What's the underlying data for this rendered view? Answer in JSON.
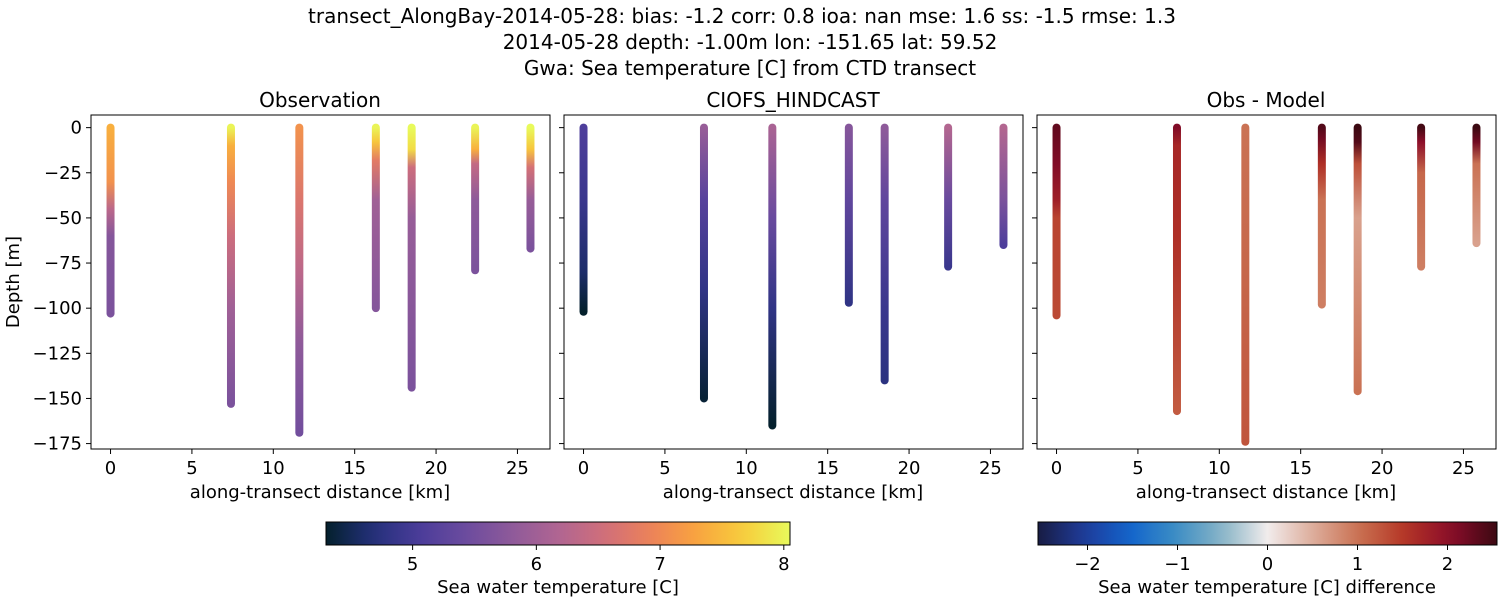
{
  "title_lines": [
    "transect_AlongBay-2014-05-28: bias: -1.2  corr: 0.8  ioa: nan  mse: 1.6  ss: -1.5  rmse: 1.3",
    "2014-05-28 depth: -1.00m lon: -151.65 lat: 59.52",
    "Gwa: Sea temperature [C] from CTD transect"
  ],
  "chart_data": [
    {
      "type": "scatter",
      "title": "Observation",
      "xlabel": "along-transect distance [km]",
      "ylabel": "Depth [m]",
      "xlim": [
        -1.2,
        27
      ],
      "ylim": [
        -178,
        7
      ],
      "xticks": [
        0,
        5,
        10,
        15,
        20,
        25
      ],
      "yticks": [
        0,
        -25,
        -50,
        -75,
        -100,
        -125,
        -150,
        -175
      ],
      "colormap": "thermal",
      "clim": [
        4.3,
        8.05
      ],
      "casts": [
        {
          "x": 0.0,
          "max_depth": -103,
          "stops": [
            [
              0,
              7.4
            ],
            [
              -30,
              7.1
            ],
            [
              -45,
              6.3
            ],
            [
              -60,
              5.7
            ],
            [
              -103,
              5.6
            ]
          ]
        },
        {
          "x": 7.4,
          "max_depth": -153,
          "stops": [
            [
              0,
              8.0
            ],
            [
              -10,
              7.4
            ],
            [
              -30,
              7.0
            ],
            [
              -60,
              6.5
            ],
            [
              -100,
              6.0
            ],
            [
              -153,
              5.6
            ]
          ]
        },
        {
          "x": 11.6,
          "max_depth": -169,
          "stops": [
            [
              0,
              7.1
            ],
            [
              -40,
              6.7
            ],
            [
              -80,
              6.3
            ],
            [
              -120,
              5.8
            ],
            [
              -169,
              5.5
            ]
          ]
        },
        {
          "x": 16.3,
          "max_depth": -100,
          "stops": [
            [
              0,
              8.0
            ],
            [
              -8,
              7.6
            ],
            [
              -18,
              6.8
            ],
            [
              -40,
              6.0
            ],
            [
              -100,
              5.7
            ]
          ]
        },
        {
          "x": 18.5,
          "max_depth": -144,
          "stops": [
            [
              0,
              8.05
            ],
            [
              -12,
              7.8
            ],
            [
              -22,
              6.5
            ],
            [
              -50,
              5.9
            ],
            [
              -144,
              5.6
            ]
          ]
        },
        {
          "x": 22.4,
          "max_depth": -79,
          "stops": [
            [
              0,
              8.0
            ],
            [
              -12,
              7.4
            ],
            [
              -20,
              6.4
            ],
            [
              -40,
              5.8
            ],
            [
              -79,
              5.6
            ]
          ]
        },
        {
          "x": 25.8,
          "max_depth": -67,
          "stops": [
            [
              0,
              8.05
            ],
            [
              -12,
              7.6
            ],
            [
              -22,
              6.6
            ],
            [
              -40,
              5.9
            ],
            [
              -67,
              5.6
            ]
          ]
        }
      ]
    },
    {
      "type": "scatter",
      "title": "CIOFS_HINDCAST",
      "xlabel": "along-transect distance [km]",
      "xlim": [
        -1.2,
        27
      ],
      "ylim": [
        -178,
        7
      ],
      "xticks": [
        0,
        5,
        10,
        15,
        20,
        25
      ],
      "yticks": [
        0,
        -25,
        -50,
        -75,
        -100,
        -125,
        -150,
        -175
      ],
      "colormap": "thermal",
      "clim": [
        4.3,
        8.05
      ],
      "casts": [
        {
          "x": 0.0,
          "max_depth": -102,
          "stops": [
            [
              0,
              5.1
            ],
            [
              -40,
              4.9
            ],
            [
              -80,
              4.6
            ],
            [
              -102,
              4.3
            ]
          ]
        },
        {
          "x": 7.4,
          "max_depth": -150,
          "stops": [
            [
              0,
              5.9
            ],
            [
              -40,
              5.2
            ],
            [
              -90,
              4.8
            ],
            [
              -150,
              4.35
            ]
          ]
        },
        {
          "x": 11.6,
          "max_depth": -165,
          "stops": [
            [
              0,
              6.1
            ],
            [
              -50,
              5.4
            ],
            [
              -100,
              4.8
            ],
            [
              -165,
              4.3
            ]
          ]
        },
        {
          "x": 16.3,
          "max_depth": -97,
          "stops": [
            [
              0,
              5.7
            ],
            [
              -40,
              5.3
            ],
            [
              -97,
              4.8
            ]
          ]
        },
        {
          "x": 18.5,
          "max_depth": -140,
          "stops": [
            [
              0,
              5.8
            ],
            [
              -40,
              5.3
            ],
            [
              -100,
              4.9
            ],
            [
              -140,
              4.75
            ]
          ]
        },
        {
          "x": 22.4,
          "max_depth": -77,
          "stops": [
            [
              0,
              6.2
            ],
            [
              -40,
              5.4
            ],
            [
              -77,
              4.9
            ]
          ]
        },
        {
          "x": 25.8,
          "max_depth": -65,
          "stops": [
            [
              0,
              6.2
            ],
            [
              -40,
              5.6
            ],
            [
              -65,
              5.1
            ]
          ]
        }
      ]
    },
    {
      "type": "scatter",
      "title": "Obs - Model",
      "xlabel": "along-transect distance [km]",
      "xlim": [
        -1.2,
        27
      ],
      "ylim": [
        -178,
        7
      ],
      "xticks": [
        0,
        5,
        10,
        15,
        20,
        25
      ],
      "yticks": [
        0,
        -25,
        -50,
        -75,
        -100,
        -125,
        -150,
        -175
      ],
      "colormap": "balance",
      "clim": [
        -2.55,
        2.55
      ],
      "casts": [
        {
          "x": 0.0,
          "max_depth": -104,
          "stops": [
            [
              0,
              2.3
            ],
            [
              -20,
              2.1
            ],
            [
              -40,
              1.8
            ],
            [
              -50,
              1.4
            ],
            [
              -104,
              1.35
            ]
          ]
        },
        {
          "x": 7.4,
          "max_depth": -157,
          "stops": [
            [
              0,
              2.1
            ],
            [
              -10,
              1.7
            ],
            [
              -60,
              1.6
            ],
            [
              -157,
              1.2
            ]
          ]
        },
        {
          "x": 11.6,
          "max_depth": -174,
          "stops": [
            [
              0,
              1.0
            ],
            [
              -80,
              1.1
            ],
            [
              -174,
              1.25
            ]
          ]
        },
        {
          "x": 16.3,
          "max_depth": -98,
          "stops": [
            [
              0,
              2.4
            ],
            [
              -6,
              2.2
            ],
            [
              -20,
              1.6
            ],
            [
              -40,
              1.0
            ],
            [
              -98,
              0.9
            ]
          ]
        },
        {
          "x": 18.5,
          "max_depth": -146,
          "stops": [
            [
              0,
              2.55
            ],
            [
              -8,
              2.4
            ],
            [
              -20,
              1.3
            ],
            [
              -50,
              0.6
            ],
            [
              -146,
              1.0
            ]
          ]
        },
        {
          "x": 22.4,
          "max_depth": -77,
          "stops": [
            [
              0,
              2.5
            ],
            [
              -8,
              2.0
            ],
            [
              -25,
              1.1
            ],
            [
              -77,
              0.9
            ]
          ]
        },
        {
          "x": 25.8,
          "max_depth": -64,
          "stops": [
            [
              0,
              2.55
            ],
            [
              -8,
              2.2
            ],
            [
              -20,
              1.0
            ],
            [
              -64,
              0.6
            ]
          ]
        }
      ]
    }
  ],
  "colorbars": [
    {
      "label": "Sea water temperature [C]",
      "colormap": "thermal",
      "clim": [
        4.3,
        8.05
      ],
      "ticks": [
        5,
        6,
        7,
        8
      ]
    },
    {
      "label": "Sea water temperature [C] difference",
      "colormap": "balance",
      "clim": [
        -2.55,
        2.55
      ],
      "ticks": [
        -2,
        -1,
        0,
        1,
        2
      ]
    }
  ],
  "colormaps": {
    "thermal": [
      "#04202c",
      "#23307a",
      "#4a3c9a",
      "#6b4b9e",
      "#8e5a9a",
      "#b06592",
      "#d06e7a",
      "#ec8259",
      "#f9a43f",
      "#f7cd3c",
      "#e8fa5b"
    ],
    "balance": [
      "#181c43",
      "#1f3b99",
      "#1164cc",
      "#3c8dc4",
      "#86b3c6",
      "#f1ecec",
      "#ddac9a",
      "#c97051",
      "#b43525",
      "#8a0c2a",
      "#3c0912"
    ]
  }
}
